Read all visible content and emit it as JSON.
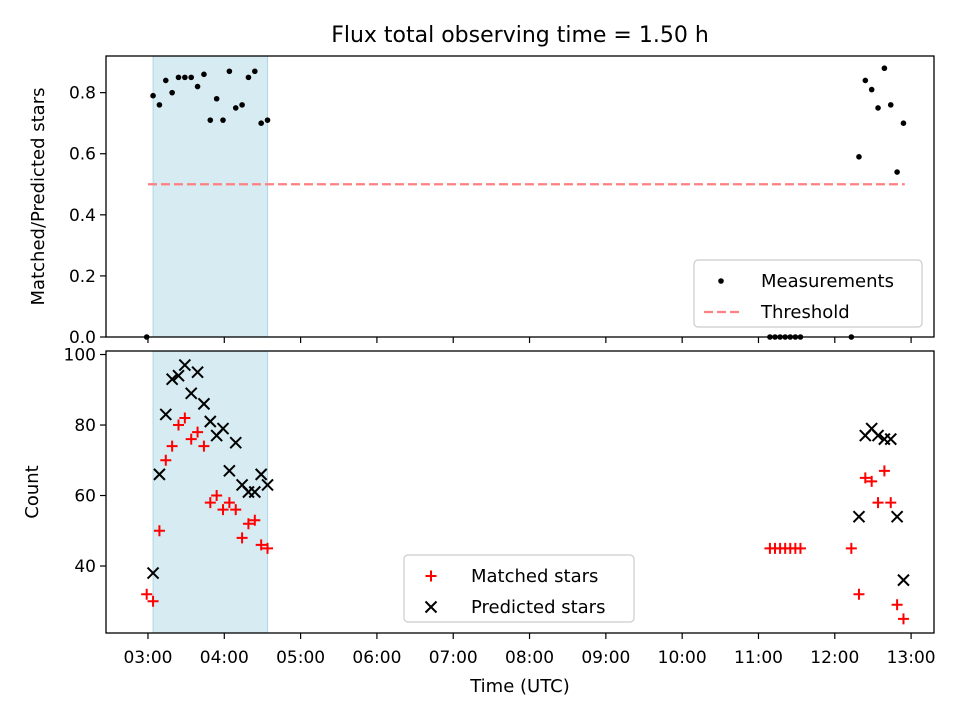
{
  "chart_data": [
    {
      "type": "scatter",
      "title": "Flux total observing time = 1.50 h",
      "ylabel": "Matched/Predicted stars",
      "xlabel": "",
      "ylim": [
        0,
        0.92
      ],
      "yticks": [
        0.0,
        0.2,
        0.4,
        0.6,
        0.8
      ],
      "ytick_labels": [
        "0.0",
        "0.2",
        "0.4",
        "0.6",
        "0.8"
      ],
      "x_range": [
        "02:27",
        "13:18"
      ],
      "highlight_span": [
        "03:04",
        "04:34"
      ],
      "highlight_color": "#add8e6",
      "legend_position": "lower-right",
      "series": [
        {
          "name": "Measurements",
          "kind": "points",
          "color": "#000000",
          "points": [
            [
              "02:59",
              0.0
            ],
            [
              "03:04",
              0.79
            ],
            [
              "03:09",
              0.76
            ],
            [
              "03:14",
              0.84
            ],
            [
              "03:19",
              0.8
            ],
            [
              "03:24",
              0.85
            ],
            [
              "03:29",
              0.85
            ],
            [
              "03:34",
              0.85
            ],
            [
              "03:39",
              0.82
            ],
            [
              "03:44",
              0.86
            ],
            [
              "03:49",
              0.71
            ],
            [
              "03:54",
              0.78
            ],
            [
              "03:59",
              0.71
            ],
            [
              "04:04",
              0.87
            ],
            [
              "04:09",
              0.75
            ],
            [
              "04:14",
              0.76
            ],
            [
              "04:19",
              0.85
            ],
            [
              "04:24",
              0.87
            ],
            [
              "04:29",
              0.7
            ],
            [
              "04:34",
              0.71
            ],
            [
              "11:09",
              0.0
            ],
            [
              "11:13",
              0.0
            ],
            [
              "11:17",
              0.0
            ],
            [
              "11:21",
              0.0
            ],
            [
              "11:25",
              0.0
            ],
            [
              "11:29",
              0.0
            ],
            [
              "11:33",
              0.0
            ],
            [
              "12:13",
              0.0
            ],
            [
              "12:19",
              0.59
            ],
            [
              "12:24",
              0.84
            ],
            [
              "12:29",
              0.81
            ],
            [
              "12:34",
              0.75
            ],
            [
              "12:39",
              0.88
            ],
            [
              "12:44",
              0.76
            ],
            [
              "12:49",
              0.54
            ],
            [
              "12:54",
              0.7
            ]
          ]
        },
        {
          "name": "Threshold",
          "kind": "dashed-line",
          "color": "#ff8080",
          "points": [
            [
              "03:00",
              0.5
            ],
            [
              "12:55",
              0.5
            ]
          ]
        }
      ]
    },
    {
      "type": "scatter",
      "title": "",
      "ylabel": "Count",
      "xlabel": "Time (UTC)",
      "ylim": [
        21,
        101
      ],
      "yticks": [
        40,
        60,
        80,
        100
      ],
      "ytick_labels": [
        "40",
        "60",
        "80",
        "100"
      ],
      "x_range": [
        "02:27",
        "13:18"
      ],
      "xticks": [
        "03:00",
        "04:00",
        "05:00",
        "06:00",
        "07:00",
        "08:00",
        "09:00",
        "10:00",
        "11:00",
        "12:00",
        "13:00"
      ],
      "highlight_span": [
        "03:04",
        "04:34"
      ],
      "highlight_color": "#add8e6",
      "legend_position": "lower-center",
      "series": [
        {
          "name": "Matched stars",
          "marker": "plus",
          "color": "#ff0000",
          "points": [
            [
              "02:59",
              32
            ],
            [
              "03:04",
              30
            ],
            [
              "03:09",
              50
            ],
            [
              "03:14",
              70
            ],
            [
              "03:19",
              74
            ],
            [
              "03:24",
              80
            ],
            [
              "03:29",
              82
            ],
            [
              "03:34",
              76
            ],
            [
              "03:39",
              78
            ],
            [
              "03:44",
              74
            ],
            [
              "03:49",
              58
            ],
            [
              "03:54",
              60
            ],
            [
              "03:59",
              56
            ],
            [
              "04:04",
              58
            ],
            [
              "04:09",
              56
            ],
            [
              "04:14",
              48
            ],
            [
              "04:19",
              52
            ],
            [
              "04:24",
              53
            ],
            [
              "04:29",
              46
            ],
            [
              "04:34",
              45
            ],
            [
              "11:09",
              45
            ],
            [
              "11:13",
              45
            ],
            [
              "11:17",
              45
            ],
            [
              "11:21",
              45
            ],
            [
              "11:25",
              45
            ],
            [
              "11:29",
              45
            ],
            [
              "11:33",
              45
            ],
            [
              "12:13",
              45
            ],
            [
              "12:19",
              32
            ],
            [
              "12:24",
              65
            ],
            [
              "12:29",
              64
            ],
            [
              "12:34",
              58
            ],
            [
              "12:39",
              67
            ],
            [
              "12:44",
              58
            ],
            [
              "12:49",
              29
            ],
            [
              "12:54",
              25
            ]
          ]
        },
        {
          "name": "Predicted stars",
          "marker": "x",
          "color": "#000000",
          "points": [
            [
              "03:04",
              38
            ],
            [
              "03:09",
              66
            ],
            [
              "03:14",
              83
            ],
            [
              "03:19",
              93
            ],
            [
              "03:24",
              94
            ],
            [
              "03:29",
              97
            ],
            [
              "03:34",
              89
            ],
            [
              "03:39",
              95
            ],
            [
              "03:44",
              86
            ],
            [
              "03:49",
              81
            ],
            [
              "03:54",
              77
            ],
            [
              "03:59",
              79
            ],
            [
              "04:04",
              67
            ],
            [
              "04:09",
              75
            ],
            [
              "04:14",
              63
            ],
            [
              "04:19",
              61
            ],
            [
              "04:24",
              61
            ],
            [
              "04:29",
              66
            ],
            [
              "04:34",
              63
            ],
            [
              "12:19",
              54
            ],
            [
              "12:24",
              77
            ],
            [
              "12:29",
              79
            ],
            [
              "12:34",
              77
            ],
            [
              "12:39",
              76
            ],
            [
              "12:44",
              76
            ],
            [
              "12:49",
              54
            ],
            [
              "12:54",
              36
            ]
          ]
        }
      ]
    }
  ]
}
